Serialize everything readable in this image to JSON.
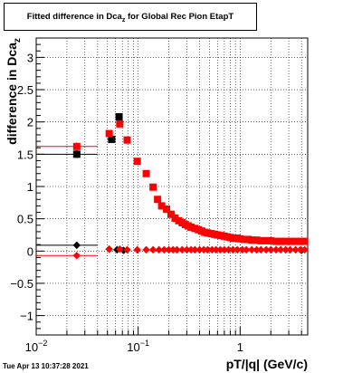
{
  "chart_data": {
    "type": "scatter",
    "title": "Fitted difference in Dca",
    "title_subscript": "z",
    "title_suffix": " for Global Rec Pion EtapT",
    "xlabel": "pT/|q| (GeV/c)",
    "ylabel": "difference in Dca",
    "ylabel_subscript": "z",
    "x_scale": "log",
    "xlim": [
      0.01,
      4.6
    ],
    "ylim": [
      -1.3,
      3.3
    ],
    "grid": true,
    "x_ticks": [
      {
        "value": 0.01,
        "label": "10",
        "exp": "−2"
      },
      {
        "value": 0.1,
        "label": "10",
        "exp": "−1"
      },
      {
        "value": 1,
        "label": "1",
        "exp": ""
      }
    ],
    "y_ticks": [
      {
        "value": -1,
        "label": "−1"
      },
      {
        "value": -0.5,
        "label": "−0.5"
      },
      {
        "value": 0,
        "label": "0"
      },
      {
        "value": 0.5,
        "label": "0.5"
      },
      {
        "value": 1,
        "label": "1"
      },
      {
        "value": 1.5,
        "label": "1.5"
      },
      {
        "value": 2,
        "label": "2"
      },
      {
        "value": 2.5,
        "label": "2.5"
      },
      {
        "value": 3,
        "label": "3"
      }
    ],
    "series": [
      {
        "color": "#000000",
        "marker": "square",
        "points": [
          {
            "x": 0.025,
            "y": 1.5,
            "xerr": [
              0.01,
              0.04
            ],
            "yerr": 0.06
          },
          {
            "x": 0.055,
            "y": 1.73,
            "xerr": [
              0.05,
              0.06
            ]
          },
          {
            "x": 0.065,
            "y": 2.08,
            "xerr": [
              0.06,
              0.07
            ]
          }
        ]
      },
      {
        "color": "#ff0000",
        "marker": "square",
        "points": [
          {
            "x": 0.025,
            "y": 1.62,
            "xerr": [
              0.01,
              0.04
            ],
            "yerr": 0.06
          },
          {
            "x": 0.052,
            "y": 1.82
          },
          {
            "x": 0.066,
            "y": 1.97
          },
          {
            "x": 0.078,
            "y": 1.72
          },
          {
            "x": 0.098,
            "y": 1.39
          },
          {
            "x": 0.12,
            "y": 1.2
          },
          {
            "x": 0.14,
            "y": 0.99
          },
          {
            "x": 0.155,
            "y": 0.8
          },
          {
            "x": 0.17,
            "y": 0.7
          },
          {
            "x": 0.19,
            "y": 0.65
          },
          {
            "x": 0.21,
            "y": 0.57
          },
          {
            "x": 0.23,
            "y": 0.51
          },
          {
            "x": 0.25,
            "y": 0.47
          },
          {
            "x": 0.27,
            "y": 0.44
          },
          {
            "x": 0.29,
            "y": 0.41
          },
          {
            "x": 0.31,
            "y": 0.39
          },
          {
            "x": 0.33,
            "y": 0.37
          },
          {
            "x": 0.36,
            "y": 0.35
          },
          {
            "x": 0.39,
            "y": 0.33
          },
          {
            "x": 0.42,
            "y": 0.31
          },
          {
            "x": 0.45,
            "y": 0.29
          },
          {
            "x": 0.48,
            "y": 0.28
          },
          {
            "x": 0.52,
            "y": 0.27
          },
          {
            "x": 0.56,
            "y": 0.26
          },
          {
            "x": 0.6,
            "y": 0.25
          },
          {
            "x": 0.65,
            "y": 0.24
          },
          {
            "x": 0.7,
            "y": 0.23
          },
          {
            "x": 0.75,
            "y": 0.22
          },
          {
            "x": 0.8,
            "y": 0.21
          },
          {
            "x": 0.86,
            "y": 0.2
          },
          {
            "x": 0.93,
            "y": 0.2
          },
          {
            "x": 1.0,
            "y": 0.19
          },
          {
            "x": 1.1,
            "y": 0.18
          },
          {
            "x": 1.2,
            "y": 0.18
          },
          {
            "x": 1.3,
            "y": 0.17
          },
          {
            "x": 1.45,
            "y": 0.17
          },
          {
            "x": 1.6,
            "y": 0.16
          },
          {
            "x": 1.8,
            "y": 0.16
          },
          {
            "x": 2.0,
            "y": 0.16
          },
          {
            "x": 2.25,
            "y": 0.15
          },
          {
            "x": 2.5,
            "y": 0.15
          },
          {
            "x": 2.8,
            "y": 0.15
          },
          {
            "x": 3.1,
            "y": 0.15
          },
          {
            "x": 3.5,
            "y": 0.15
          },
          {
            "x": 3.9,
            "y": 0.15
          },
          {
            "x": 4.3,
            "y": 0.15
          }
        ]
      },
      {
        "color": "#000000",
        "marker": "diamond",
        "points": [
          {
            "x": 0.025,
            "y": 0.09,
            "xerr": [
              0.01,
              0.04
            ]
          },
          {
            "x": 0.052,
            "y": 0.03
          },
          {
            "x": 0.062,
            "y": 0.02
          },
          {
            "x": 0.072,
            "y": 0.01
          },
          {
            "x": 4.0,
            "y": 0.01
          }
        ]
      },
      {
        "color": "#ff0000",
        "marker": "diamond",
        "points": [
          {
            "x": 0.025,
            "y": -0.07,
            "xerr": [
              0.01,
              0.04
            ]
          },
          {
            "x": 0.052,
            "y": 0.03
          },
          {
            "x": 0.066,
            "y": 0.03
          },
          {
            "x": 0.078,
            "y": 0.02
          },
          {
            "x": 0.098,
            "y": 0.02
          },
          {
            "x": 0.12,
            "y": 0.02
          },
          {
            "x": 0.14,
            "y": 0.02
          },
          {
            "x": 0.16,
            "y": 0.02
          },
          {
            "x": 0.18,
            "y": 0.02
          },
          {
            "x": 0.2,
            "y": 0.02
          },
          {
            "x": 0.22,
            "y": 0.02
          },
          {
            "x": 0.24,
            "y": 0.02
          },
          {
            "x": 0.27,
            "y": 0.02
          },
          {
            "x": 0.3,
            "y": 0.02
          },
          {
            "x": 0.33,
            "y": 0.02
          },
          {
            "x": 0.36,
            "y": 0.02
          },
          {
            "x": 0.4,
            "y": 0.02
          },
          {
            "x": 0.44,
            "y": 0.02
          },
          {
            "x": 0.48,
            "y": 0.02
          },
          {
            "x": 0.53,
            "y": 0.02
          },
          {
            "x": 0.58,
            "y": 0.02
          },
          {
            "x": 0.64,
            "y": 0.02
          },
          {
            "x": 0.7,
            "y": 0.02
          },
          {
            "x": 0.77,
            "y": 0.02
          },
          {
            "x": 0.85,
            "y": 0.02
          },
          {
            "x": 0.94,
            "y": 0.02
          },
          {
            "x": 1.05,
            "y": 0.02
          },
          {
            "x": 1.15,
            "y": 0.02
          },
          {
            "x": 1.3,
            "y": 0.02
          },
          {
            "x": 1.45,
            "y": 0.02
          },
          {
            "x": 1.6,
            "y": 0.02
          },
          {
            "x": 1.8,
            "y": 0.02
          },
          {
            "x": 2.0,
            "y": 0.02
          },
          {
            "x": 2.25,
            "y": 0.02
          },
          {
            "x": 2.5,
            "y": 0.02
          },
          {
            "x": 2.8,
            "y": 0.02
          },
          {
            "x": 3.1,
            "y": 0.02
          },
          {
            "x": 3.5,
            "y": 0.02
          },
          {
            "x": 3.9,
            "y": 0.02
          },
          {
            "x": 4.3,
            "y": 0.02
          }
        ]
      }
    ]
  },
  "datestamp": "Tue Apr 13 10:37:28 2021"
}
